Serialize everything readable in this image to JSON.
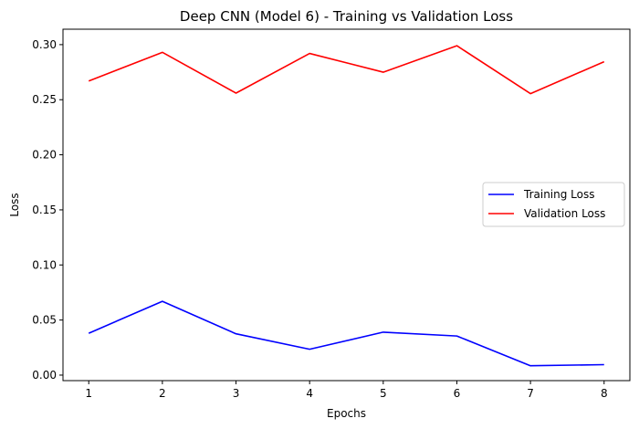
{
  "chart_data": {
    "type": "line",
    "title": "Deep CNN (Model 6) - Training vs Validation Loss",
    "xlabel": "Epochs",
    "ylabel": "Loss",
    "x": [
      1,
      2,
      3,
      4,
      5,
      6,
      7,
      8
    ],
    "xlim": [
      0.65,
      8.35
    ],
    "ylim": [
      -0.005,
      0.314
    ],
    "xticks": [
      "1",
      "2",
      "3",
      "4",
      "5",
      "6",
      "7",
      "8"
    ],
    "yticks": [
      "0.00",
      "0.05",
      "0.10",
      "0.15",
      "0.20",
      "0.25",
      "0.30"
    ],
    "ytick_values": [
      0.0,
      0.05,
      0.1,
      0.15,
      0.2,
      0.25,
      0.3
    ],
    "grid": false,
    "legend_position": "center-right",
    "series": [
      {
        "name": "Training Loss",
        "color": "#0000ff",
        "values": [
          0.038,
          0.067,
          0.0375,
          0.0235,
          0.039,
          0.0355,
          0.0085,
          0.0095
        ]
      },
      {
        "name": "Validation Loss",
        "color": "#ff0000",
        "values": [
          0.267,
          0.293,
          0.256,
          0.292,
          0.275,
          0.299,
          0.2555,
          0.2845
        ]
      }
    ]
  }
}
